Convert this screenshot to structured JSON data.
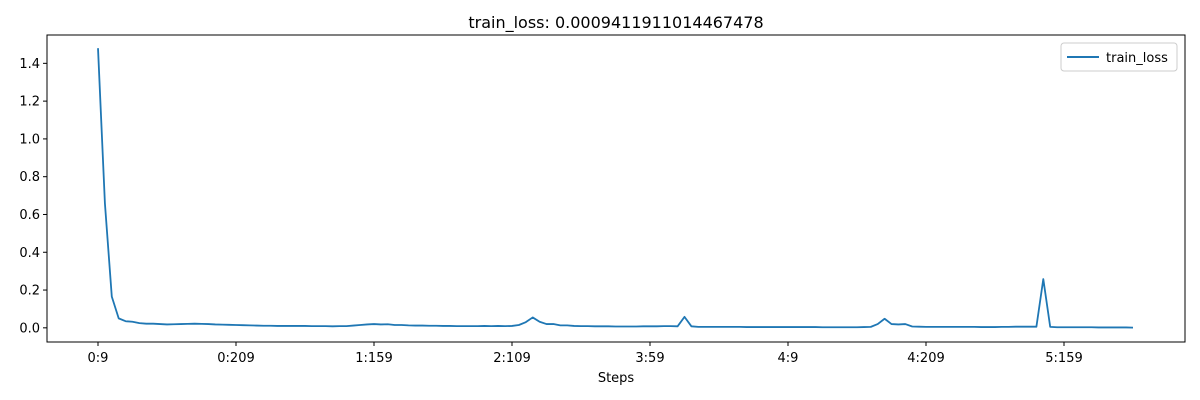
{
  "chart_data": {
    "type": "line",
    "title": "train_loss: 0.0009411911014467478",
    "xlabel": "Steps",
    "ylabel": "",
    "ylim": [
      -0.075,
      1.55
    ],
    "y_ticks": [
      0.0,
      0.2,
      0.4,
      0.6,
      0.8,
      1.0,
      1.2,
      1.4
    ],
    "x_ticks": [
      {
        "label": "0:9",
        "index": 0
      },
      {
        "label": "0:209",
        "index": 20
      },
      {
        "label": "1:159",
        "index": 40
      },
      {
        "label": "2:109",
        "index": 60
      },
      {
        "label": "3:59",
        "index": 80
      },
      {
        "label": "4:9",
        "index": 100
      },
      {
        "label": "4:209",
        "index": 120
      },
      {
        "label": "5:159",
        "index": 140
      }
    ],
    "legend": {
      "position": "top-right"
    },
    "series": [
      {
        "name": "train_loss",
        "color": "#1f77b4",
        "values": [
          1.48,
          0.66,
          0.165,
          0.05,
          0.035,
          0.032,
          0.025,
          0.022,
          0.022,
          0.02,
          0.018,
          0.019,
          0.02,
          0.021,
          0.022,
          0.021,
          0.02,
          0.018,
          0.017,
          0.016,
          0.015,
          0.014,
          0.013,
          0.012,
          0.011,
          0.011,
          0.01,
          0.01,
          0.01,
          0.01,
          0.01,
          0.009,
          0.009,
          0.009,
          0.008,
          0.009,
          0.009,
          0.012,
          0.015,
          0.018,
          0.02,
          0.018,
          0.019,
          0.015,
          0.015,
          0.013,
          0.012,
          0.012,
          0.011,
          0.011,
          0.01,
          0.01,
          0.009,
          0.009,
          0.009,
          0.009,
          0.01,
          0.009,
          0.01,
          0.009,
          0.01,
          0.015,
          0.03,
          0.055,
          0.032,
          0.02,
          0.02,
          0.013,
          0.013,
          0.01,
          0.009,
          0.009,
          0.008,
          0.008,
          0.008,
          0.007,
          0.007,
          0.007,
          0.007,
          0.008,
          0.008,
          0.008,
          0.009,
          0.009,
          0.008,
          0.058,
          0.008,
          0.005,
          0.005,
          0.005,
          0.005,
          0.005,
          0.005,
          0.005,
          0.004,
          0.004,
          0.004,
          0.004,
          0.004,
          0.004,
          0.004,
          0.004,
          0.004,
          0.004,
          0.004,
          0.003,
          0.003,
          0.003,
          0.003,
          0.003,
          0.003,
          0.004,
          0.005,
          0.02,
          0.048,
          0.02,
          0.018,
          0.02,
          0.007,
          0.006,
          0.005,
          0.005,
          0.005,
          0.005,
          0.005,
          0.005,
          0.005,
          0.005,
          0.004,
          0.004,
          0.004,
          0.005,
          0.005,
          0.006,
          0.006,
          0.006,
          0.006,
          0.258,
          0.005,
          0.003,
          0.003,
          0.003,
          0.003,
          0.003,
          0.003,
          0.002,
          0.002,
          0.002,
          0.002,
          0.002,
          0.001
        ]
      }
    ]
  }
}
